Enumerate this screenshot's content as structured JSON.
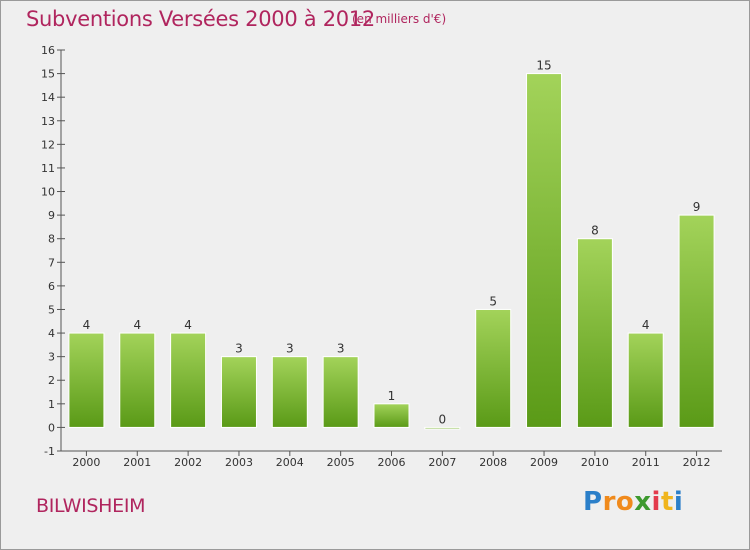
{
  "title": "Subventions Versées 2000 à 2012",
  "unit_note": "(en milliers d'€)",
  "commune": "BILWISHEIM",
  "logo": {
    "letters": [
      "P",
      "r",
      "o",
      "x",
      "i",
      "t",
      "i"
    ],
    "colors": [
      "#2b7fc9",
      "#f08a1c",
      "#f08a1c",
      "#3d9a2e",
      "#e33a4c",
      "#f0b51c",
      "#2b7fc9"
    ]
  },
  "colors": {
    "accent": "#b0255e",
    "bar_light": "#a3d35a",
    "bar_dark": "#5a9a17",
    "background": "#efefef"
  },
  "chart_data": {
    "type": "bar",
    "title": "Subventions Versées 2000 à 2012",
    "subtitle": "(en milliers d'€)",
    "categories": [
      "2000",
      "2001",
      "2002",
      "2003",
      "2004",
      "2005",
      "2006",
      "2007",
      "2008",
      "2009",
      "2010",
      "2011",
      "2012"
    ],
    "values": [
      4,
      4,
      4,
      3,
      3,
      3,
      1,
      0,
      5,
      15,
      8,
      4,
      9
    ],
    "ylim": [
      -1,
      16
    ],
    "yticks": [
      -1,
      0,
      1,
      2,
      3,
      4,
      5,
      6,
      7,
      8,
      9,
      10,
      11,
      12,
      13,
      14,
      15,
      16
    ],
    "grid": false,
    "legend": "none"
  }
}
